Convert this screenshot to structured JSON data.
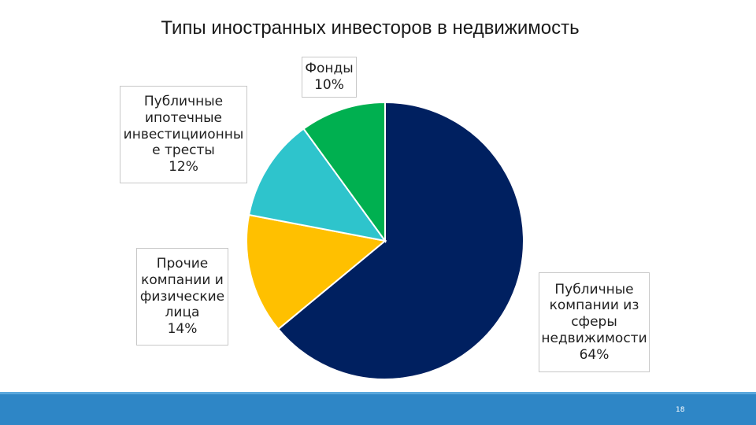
{
  "slide": {
    "title": "Типы иностранных инвесторов в недвижимость",
    "page_number": "18",
    "footer_color": "#2e86c6"
  },
  "chart_data": {
    "type": "pie",
    "title": "Типы иностранных инвесторов в недвижимость",
    "start_angle_deg": 0,
    "direction": "clockwise",
    "slices": [
      {
        "label": "Публичные компании из сферы недвижимости",
        "value": 64,
        "percent_label": "64%",
        "color": "#002060"
      },
      {
        "label": "Прочие компании и физические лица",
        "value": 14,
        "percent_label": "14%",
        "color": "#ffc000"
      },
      {
        "label": "Публичные ипотечные инвестициионные тресты",
        "value": 12,
        "percent_label": "12%",
        "color": "#2ec4cc"
      },
      {
        "label": "Фонды",
        "value": 10,
        "percent_label": "10%",
        "color": "#00b050"
      }
    ]
  },
  "labels": {
    "public_re": "Публичные\nкомпании из\nсферы\nнедвижимости\n64%",
    "other": "Прочие\nкомпании и\nфизические\nлица\n14%",
    "reit": "Публичные\nипотечные\nинвестициионны\nе тресты\n12%",
    "funds": "Фонды\n10%"
  }
}
